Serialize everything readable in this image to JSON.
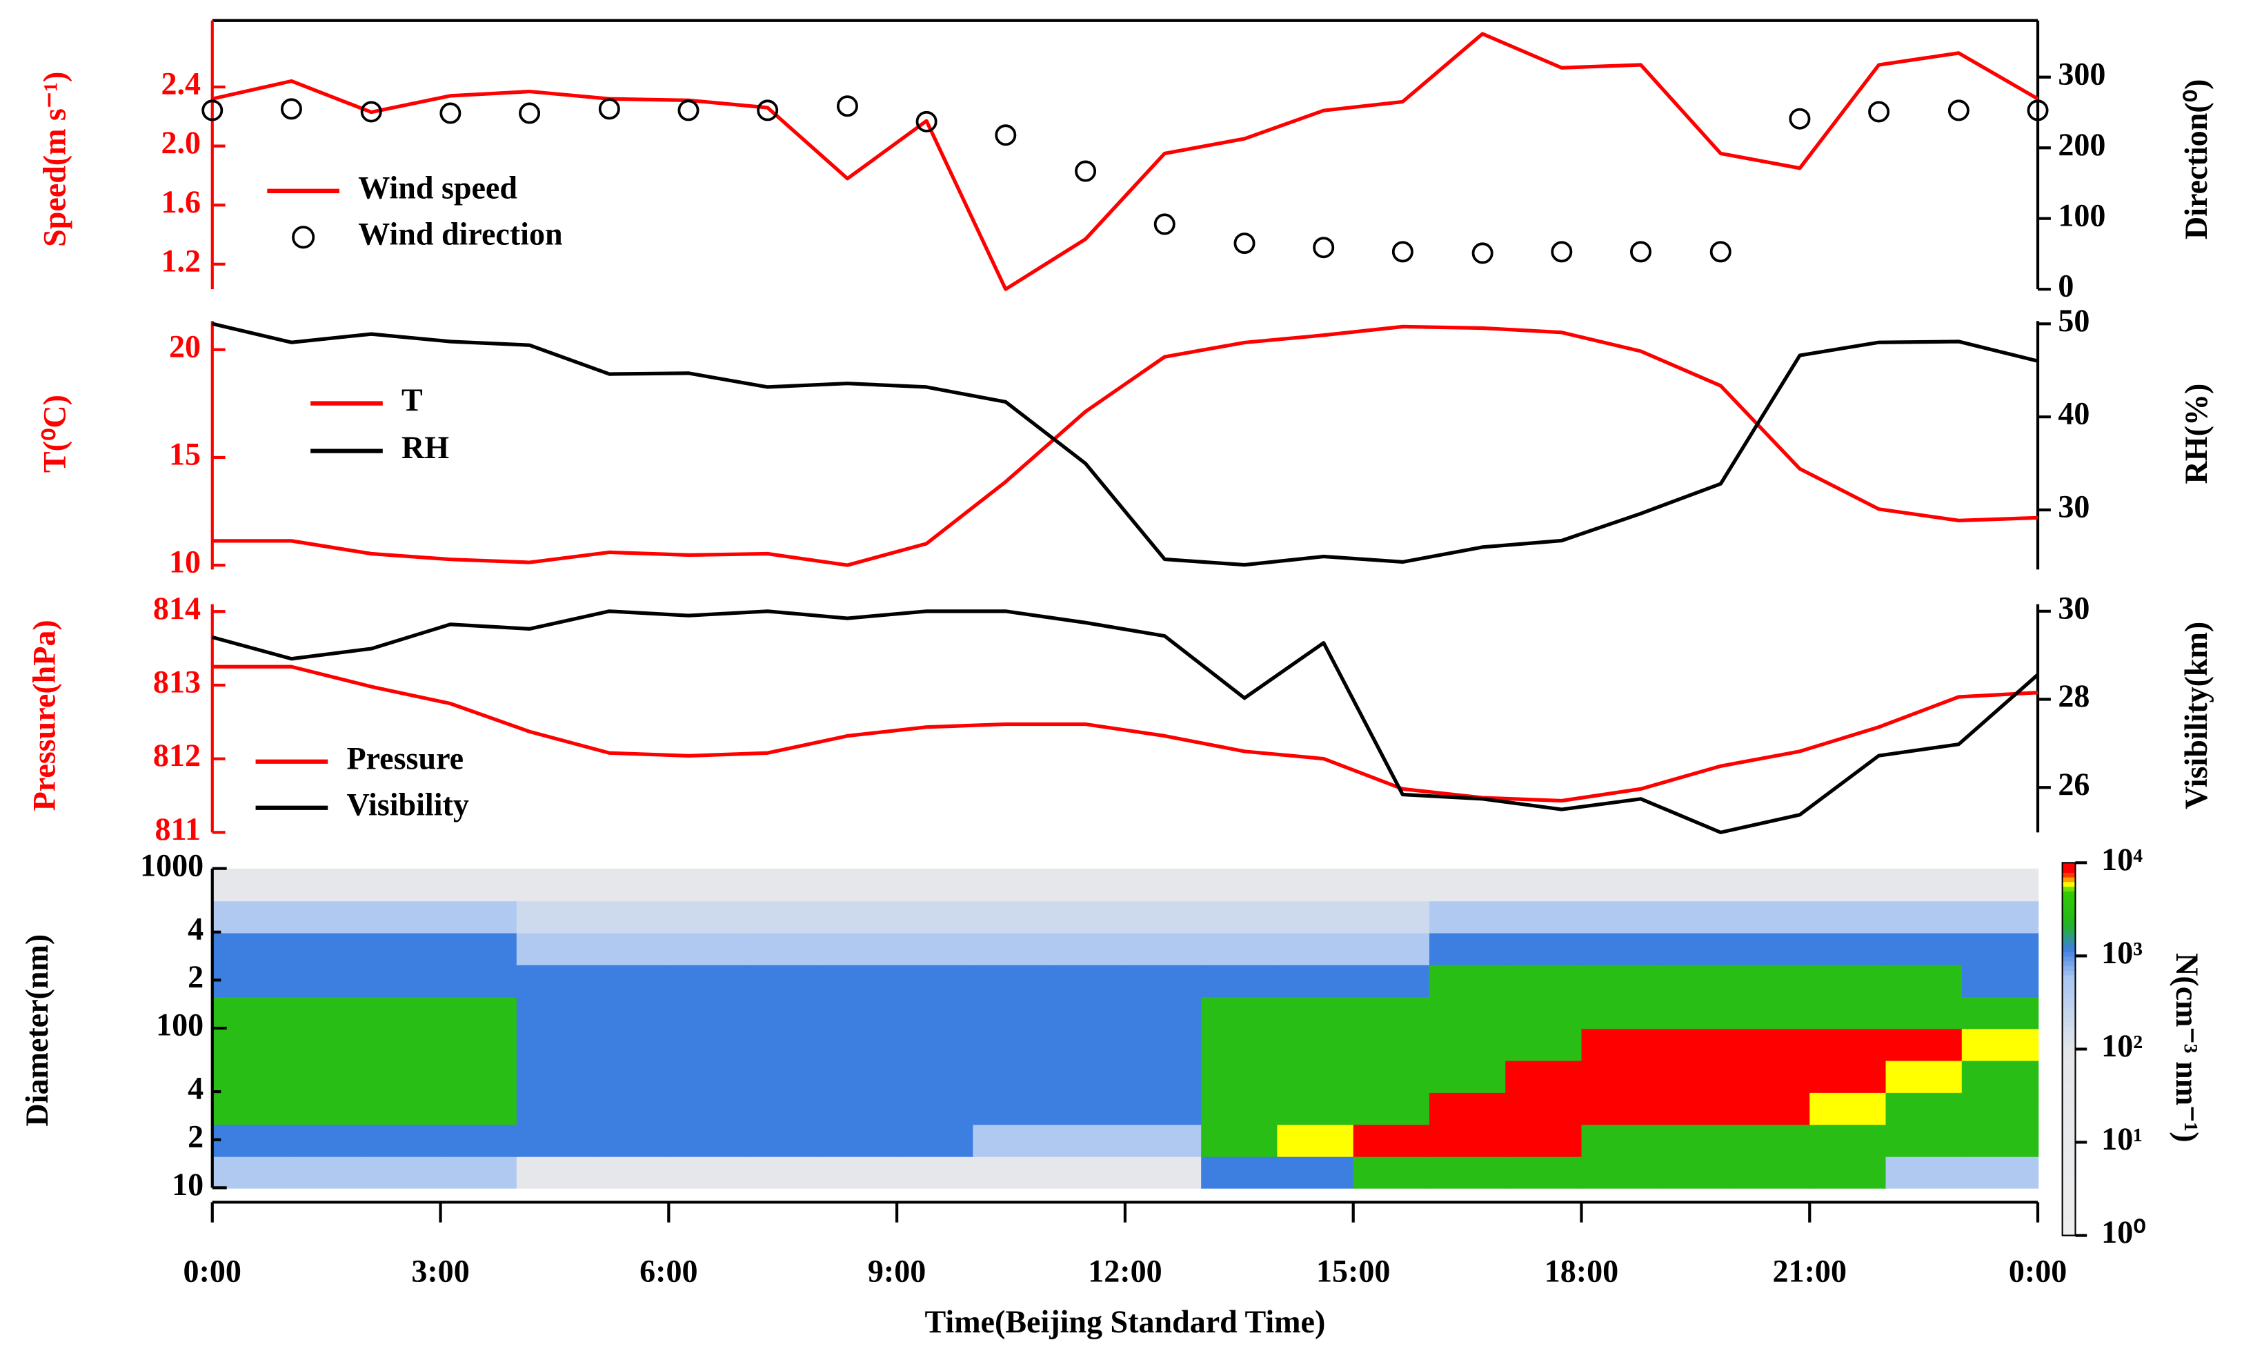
{
  "chart_data": [
    {
      "type": "line",
      "xlim": [
        0,
        24
      ],
      "x": [
        0,
        1.04,
        2.09,
        3.13,
        4.17,
        5.22,
        6.26,
        7.3,
        8.35,
        9.39,
        10.43,
        11.48,
        12.52,
        13.57,
        14.61,
        15.65,
        16.7,
        17.74,
        18.78,
        19.83,
        20.87,
        21.91,
        22.96,
        24
      ],
      "ylabel": "Speed(m s⁻¹)",
      "y2label": "Direction(⁰)",
      "yaxis_color": "#ff0000",
      "ylim": [
        1.03,
        2.85
      ],
      "yticks": [
        1.2,
        1.6,
        {
          "value": 2,
          "label": "2.0"
        },
        2.4
      ],
      "y2lim": [
        0,
        380
      ],
      "y2ticks": [
        0,
        100,
        200,
        300
      ],
      "series": [
        {
          "name": "Wind speed",
          "color": "#ff0000",
          "values": [
            2.32,
            2.44,
            2.23,
            2.34,
            2.37,
            2.32,
            2.31,
            2.26,
            1.78,
            2.17,
            1.03,
            1.37,
            1.95,
            2.05,
            2.24,
            2.3,
            2.76,
            2.53,
            2.55,
            1.95,
            1.85,
            2.55,
            2.63,
            2.32
          ]
        },
        {
          "name": "Wind direction",
          "color": "#000000",
          "axis": "y2",
          "mode": "markers",
          "values": [
            253,
            255,
            251,
            249,
            249,
            255,
            253,
            253,
            259,
            237,
            218,
            167,
            92,
            65,
            59,
            53,
            51,
            53,
            53,
            53,
            241,
            251,
            253,
            253
          ]
        }
      ]
    },
    {
      "type": "line",
      "xlim": [
        0,
        24
      ],
      "x": [
        0,
        1.04,
        2.09,
        3.13,
        4.17,
        5.22,
        6.26,
        7.3,
        8.35,
        9.39,
        10.43,
        11.48,
        12.52,
        13.57,
        14.61,
        15.65,
        16.7,
        17.74,
        18.78,
        19.83,
        20.87,
        21.91,
        22.96,
        24
      ],
      "ylabel": "T(⁰C)",
      "y2label": "RH(%)",
      "yaxis_color": "#ff0000",
      "ylim": [
        9.8,
        21.33
      ],
      "yticks": [
        10,
        15,
        20
      ],
      "y2lim": [
        23.6,
        50.3
      ],
      "y2ticks": [
        30,
        40,
        50
      ],
      "series": [
        {
          "name": "T",
          "color": "#ff0000",
          "values": [
            11.13,
            11.13,
            10.53,
            10.27,
            10.13,
            10.6,
            10.47,
            10.53,
            10,
            11,
            13.87,
            17.13,
            19.67,
            20.33,
            20.67,
            21.07,
            21,
            20.8,
            19.93,
            18.33,
            14.47,
            12.6,
            12.07,
            12.2
          ]
        },
        {
          "name": "RH",
          "color": "#000000",
          "axis": "y2",
          "values": [
            50,
            48,
            48.9,
            48.1,
            47.7,
            44.6,
            44.7,
            43.2,
            43.6,
            43.2,
            41.6,
            35,
            24.7,
            24.1,
            25,
            24.4,
            26,
            26.7,
            29.6,
            32.8,
            46.6,
            48,
            48.1,
            46
          ]
        }
      ]
    },
    {
      "type": "line",
      "xlim": [
        0,
        24
      ],
      "x": [
        0,
        1.04,
        2.09,
        3.13,
        4.17,
        5.22,
        6.26,
        7.3,
        8.35,
        9.39,
        10.43,
        11.48,
        12.52,
        13.57,
        14.61,
        15.65,
        16.7,
        17.74,
        18.78,
        19.83,
        20.87,
        21.91,
        22.96,
        24
      ],
      "ylabel": "Pressure(hPa)",
      "y2label": "Visibility(km)",
      "yaxis_color": "#ff0000",
      "ylim": [
        811,
        814.1
      ],
      "yticks": [
        811,
        812,
        813,
        814
      ],
      "y2lim": [
        24.98,
        30.16
      ],
      "y2ticks": [
        26,
        28,
        30
      ],
      "series": [
        {
          "name": "Pressure",
          "color": "#ff0000",
          "values": [
            813.25,
            813.25,
            812.98,
            812.75,
            812.37,
            812.08,
            812.04,
            812.08,
            812.31,
            812.43,
            812.47,
            812.47,
            812.31,
            812.1,
            812,
            811.59,
            811.47,
            811.43,
            811.59,
            811.9,
            812.1,
            812.43,
            812.84,
            812.9
          ]
        },
        {
          "name": "Visibility",
          "color": "#000000",
          "axis": "y2",
          "values": [
            29.41,
            28.92,
            29.15,
            29.7,
            29.6,
            30,
            29.9,
            30,
            29.84,
            30,
            30,
            29.74,
            29.44,
            28.03,
            29.28,
            25.84,
            25.74,
            25.5,
            25.74,
            24.98,
            25.38,
            26.72,
            26.98,
            28.56
          ]
        }
      ]
    },
    {
      "type": "heatmap",
      "xlim": [
        0,
        24
      ],
      "xticks": [
        {
          "value": 0,
          "label": "0:00"
        },
        {
          "value": 3,
          "label": "3:00"
        },
        {
          "value": 6,
          "label": "6:00"
        },
        {
          "value": 9,
          "label": "9:00"
        },
        {
          "value": 12,
          "label": "12:00"
        },
        {
          "value": 15,
          "label": "15:00"
        },
        {
          "value": 18,
          "label": "18:00"
        },
        {
          "value": 21,
          "label": "21:00"
        },
        {
          "value": 24,
          "label": "0:00"
        }
      ],
      "xlabel": "Time(Beijing Standard Time)",
      "ylabel": "Diameter(nm)",
      "ylog": true,
      "ylim": [
        10,
        1000
      ],
      "yticks": [
        10,
        {
          "value": 20,
          "label": "2"
        },
        {
          "value": 40,
          "label": "4"
        },
        100,
        {
          "value": 200,
          "label": "2"
        },
        {
          "value": 400,
          "label": "4"
        },
        1000
      ],
      "x_edges": [
        0,
        1,
        2,
        3,
        4,
        5,
        6,
        7,
        8,
        9,
        10,
        11,
        12,
        13,
        14,
        15,
        16,
        17,
        18,
        19,
        20,
        21,
        22,
        23,
        24
      ],
      "y_edges": [
        10,
        15.8,
        25.1,
        39.8,
        63.1,
        100,
        158,
        251,
        398,
        631,
        1000
      ],
      "z": [
        [
          500,
          500,
          500,
          500,
          50,
          50,
          50,
          50,
          50,
          50,
          50,
          50,
          50,
          1200,
          1200,
          3000,
          3000,
          3000,
          3000,
          3000,
          3000,
          3000,
          500,
          500
        ],
        [
          1200,
          1200,
          1200,
          1200,
          1200,
          1200,
          1200,
          1200,
          1200,
          1200,
          500,
          500,
          500,
          3000,
          6000,
          10000,
          10000,
          10000,
          3000,
          3000,
          3000,
          3000,
          3000,
          3000
        ],
        [
          3000,
          3000,
          3000,
          3000,
          1200,
          1200,
          1200,
          1200,
          1200,
          1200,
          1200,
          1200,
          1200,
          3000,
          3000,
          3000,
          10000,
          10000,
          10000,
          10000,
          10000,
          6000,
          3000,
          3000
        ],
        [
          3000,
          3000,
          3000,
          3000,
          1200,
          1200,
          1200,
          1200,
          1200,
          1200,
          1200,
          1200,
          1200,
          3000,
          3000,
          3000,
          3000,
          10000,
          10000,
          10000,
          10000,
          10000,
          6000,
          3000
        ],
        [
          3000,
          3000,
          3000,
          3000,
          1200,
          1200,
          1200,
          1200,
          1200,
          1200,
          1200,
          1200,
          1200,
          3000,
          3000,
          3000,
          3000,
          3000,
          10000,
          10000,
          10000,
          10000,
          10000,
          6000
        ],
        [
          3000,
          3000,
          3000,
          3000,
          1200,
          1200,
          1200,
          1200,
          1200,
          1200,
          1200,
          1200,
          1200,
          3000,
          3000,
          3000,
          3000,
          3000,
          3000,
          3000,
          3000,
          3000,
          3000,
          3000
        ],
        [
          1200,
          1200,
          1200,
          1200,
          1200,
          1200,
          1200,
          1200,
          1200,
          1200,
          1200,
          1200,
          1200,
          1200,
          1200,
          1200,
          3000,
          3000,
          3000,
          3000,
          3000,
          3000,
          3000,
          1200
        ],
        [
          1200,
          1200,
          1200,
          1200,
          500,
          500,
          500,
          500,
          500,
          500,
          500,
          500,
          500,
          500,
          500,
          500,
          1200,
          1200,
          1200,
          1200,
          1200,
          1200,
          1200,
          1200
        ],
        [
          500,
          500,
          500,
          500,
          200,
          200,
          200,
          200,
          200,
          200,
          200,
          200,
          200,
          200,
          200,
          200,
          500,
          500,
          500,
          500,
          500,
          500,
          500,
          500
        ],
        [
          50,
          50,
          50,
          50,
          50,
          50,
          50,
          50,
          50,
          50,
          50,
          50,
          50,
          50,
          50,
          50,
          50,
          50,
          50,
          50,
          50,
          50,
          50,
          50
        ]
      ],
      "zlabel": "N(cm⁻³ nm⁻¹)",
      "zlim": [
        1,
        10000
      ],
      "zticks": [
        {
          "value": 1,
          "label": "10⁰"
        },
        {
          "value": 10,
          "label": "10¹"
        },
        {
          "value": 100,
          "label": "10²"
        },
        {
          "value": 1000,
          "label": "10³"
        },
        {
          "value": 10000,
          "label": "10⁴"
        }
      ],
      "colorscale": [
        [
          1,
          "#eeeeee"
        ],
        [
          100,
          "#e4e6ea"
        ],
        [
          600,
          "#a9c6f2"
        ],
        [
          1200,
          "#3d7fe0"
        ],
        [
          2200,
          "#22b522"
        ],
        [
          5000,
          "#33cc00"
        ],
        [
          6000,
          "#ffff00"
        ],
        [
          8000,
          "#ff0000"
        ]
      ]
    }
  ]
}
